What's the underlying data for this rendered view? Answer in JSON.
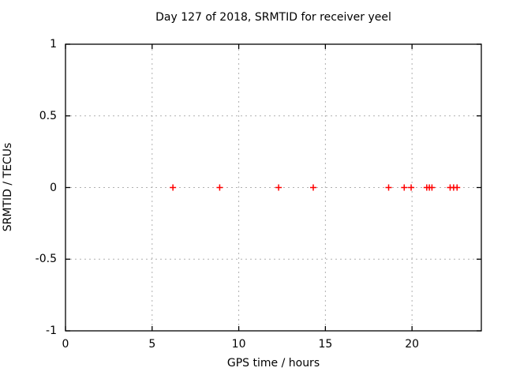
{
  "chart_data": {
    "type": "scatter",
    "title": "Day 127 of 2018, SRMTID for receiver yeel",
    "xlabel": "GPS time / hours",
    "ylabel": "SRMTID / TECUs",
    "xlim": [
      0,
      24
    ],
    "ylim": [
      -1,
      1
    ],
    "xticks": [
      0,
      5,
      10,
      15,
      20
    ],
    "yticks": [
      1,
      0.5,
      0,
      -0.5,
      -1
    ],
    "grid": true,
    "legend_position": "none",
    "marker_shape": "plus",
    "series": [
      {
        "name": "SRMTID",
        "x": [
          6.2,
          8.9,
          12.3,
          14.3,
          18.65,
          19.55,
          19.95,
          20.85,
          21.0,
          21.15,
          22.2,
          22.4,
          22.6
        ],
        "y": [
          0,
          0,
          0,
          0,
          0,
          0,
          0,
          0,
          0,
          0,
          0,
          0,
          0
        ]
      }
    ]
  },
  "colors": {
    "background": "#ffffff",
    "border": "#000000",
    "grid": "#b0b0b0",
    "text": "#000000",
    "marker": "#ff0000"
  }
}
